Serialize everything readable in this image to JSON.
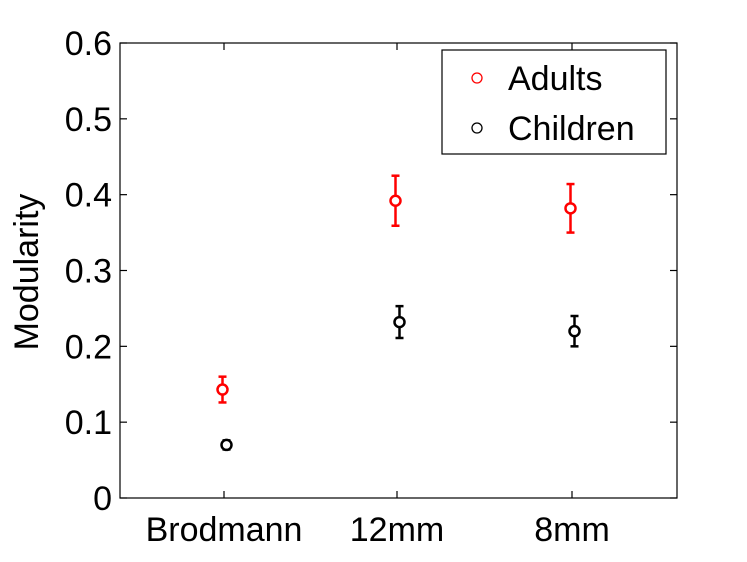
{
  "chart_data": {
    "type": "scatter",
    "categories": [
      "Brodmann",
      "12mm",
      "8mm"
    ],
    "ylabel": "Modularity",
    "xlabel": "",
    "ylim": [
      0,
      0.6
    ],
    "yticks": [
      "0",
      "0.1",
      "0.2",
      "0.3",
      "0.4",
      "0.5",
      "0.6"
    ],
    "legend_position": "top-right",
    "series": [
      {
        "name": "Adults",
        "color": "#ff0000",
        "values": [
          0.143,
          0.392,
          0.382
        ],
        "errors": [
          0.017,
          0.033,
          0.032
        ]
      },
      {
        "name": "Children",
        "color": "#000000",
        "values": [
          0.07,
          0.232,
          0.22
        ],
        "errors": [
          0.006,
          0.021,
          0.02
        ]
      }
    ]
  }
}
